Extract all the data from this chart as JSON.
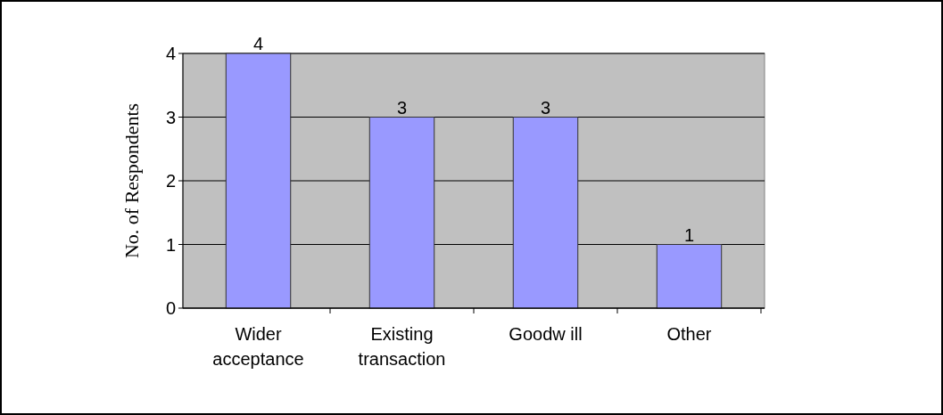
{
  "chart_data": {
    "type": "bar",
    "ylabel": "No. of Respondents",
    "categories": [
      "Wider acceptance",
      "Existing transaction",
      "Goodw ill",
      "Other"
    ],
    "values": [
      4,
      3,
      3,
      1
    ],
    "color": "#9999ff",
    "ylim": [
      0,
      4
    ],
    "yticks": [
      0,
      1,
      2,
      3,
      4
    ],
    "grid": "y",
    "data_labels": true
  }
}
